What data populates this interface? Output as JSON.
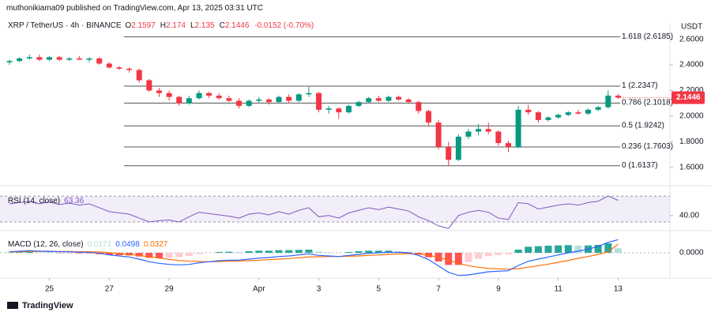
{
  "chart_data": {
    "type": "candlestick",
    "header": "muthonikiama09 published on TradingView.com, Apr 13, 2025 03:31 UTC",
    "title": "XRP / TetherUS · 4h · BINANCE",
    "ohlc": [
      {
        "label": "O",
        "value": 2.1597
      },
      {
        "label": "H",
        "value": 2.174
      },
      {
        "label": "L",
        "value": 2.135
      },
      {
        "label": "C",
        "value": 2.1446
      }
    ],
    "change": "-0.0152 (-0.70%)",
    "currency": "USDT",
    "brand": "TradingView",
    "up_color": "#089981",
    "down_color": "#f23645",
    "open": [
      2.42,
      2.43,
      2.45,
      2.46,
      2.44,
      2.46,
      2.44,
      2.45,
      2.44,
      2.45,
      2.41,
      2.38,
      2.37,
      2.36,
      2.28,
      2.2,
      2.18,
      2.15,
      2.1,
      2.14,
      2.18,
      2.16,
      2.14,
      2.12,
      2.08,
      2.12,
      2.13,
      2.11,
      2.15,
      2.12,
      2.17,
      2.18,
      2.05,
      2.06,
      2.03,
      2.08,
      2.11,
      2.14,
      2.12,
      2.15,
      2.13,
      2.11,
      2.04,
      1.95,
      1.76,
      1.66,
      1.84,
      1.88,
      1.9,
      1.88,
      1.79,
      1.76,
      2.05,
      2.03,
      1.97,
      1.99,
      2.01,
      2.03,
      2.02,
      2.05,
      2.07,
      2.1597
    ],
    "high": [
      2.44,
      2.46,
      2.48,
      2.48,
      2.47,
      2.47,
      2.46,
      2.47,
      2.46,
      2.46,
      2.42,
      2.39,
      2.38,
      2.37,
      2.29,
      2.22,
      2.2,
      2.16,
      2.16,
      2.2,
      2.19,
      2.18,
      2.16,
      2.14,
      2.13,
      2.15,
      2.14,
      2.16,
      2.17,
      2.18,
      2.23,
      2.19,
      2.08,
      2.07,
      2.09,
      2.12,
      2.15,
      2.16,
      2.16,
      2.16,
      2.14,
      2.12,
      2.05,
      1.97,
      1.8,
      1.86,
      1.9,
      1.94,
      1.95,
      1.89,
      1.81,
      2.08,
      2.09,
      2.04,
      2.0,
      2.02,
      2.04,
      2.05,
      2.06,
      2.08,
      2.2,
      2.174
    ],
    "low": [
      2.4,
      2.42,
      2.44,
      2.43,
      2.43,
      2.43,
      2.43,
      2.44,
      2.42,
      2.4,
      2.37,
      2.36,
      2.34,
      2.26,
      2.19,
      2.15,
      2.12,
      2.08,
      2.09,
      2.13,
      2.14,
      2.13,
      2.11,
      2.06,
      2.07,
      2.1,
      2.09,
      2.1,
      2.1,
      2.11,
      2.15,
      2.03,
      2.02,
      1.98,
      2.02,
      2.07,
      2.1,
      2.11,
      2.11,
      2.12,
      2.1,
      2.02,
      1.92,
      1.74,
      1.61,
      1.65,
      1.82,
      1.85,
      1.86,
      1.77,
      1.72,
      1.75,
      2.01,
      1.95,
      1.96,
      1.98,
      2.0,
      2.01,
      2.01,
      2.04,
      2.06,
      2.135
    ],
    "close": [
      2.43,
      2.45,
      2.46,
      2.44,
      2.46,
      2.44,
      2.45,
      2.44,
      2.45,
      2.41,
      2.38,
      2.37,
      2.36,
      2.28,
      2.2,
      2.18,
      2.15,
      2.1,
      2.14,
      2.18,
      2.16,
      2.14,
      2.12,
      2.08,
      2.12,
      2.13,
      2.11,
      2.15,
      2.12,
      2.17,
      2.18,
      2.05,
      2.06,
      2.03,
      2.08,
      2.11,
      2.14,
      2.12,
      2.15,
      2.13,
      2.11,
      2.04,
      1.95,
      1.76,
      1.66,
      1.84,
      1.88,
      1.9,
      1.88,
      1.79,
      1.76,
      2.05,
      2.03,
      1.97,
      1.99,
      2.01,
      2.03,
      2.02,
      2.05,
      2.07,
      2.16,
      2.1446
    ],
    "last": 2.1446,
    "ylim": [
      1.52,
      2.69
    ],
    "yticks": [
      {
        "value": 1.6,
        "label": "1.6000"
      },
      {
        "value": 1.8,
        "label": "1.8000"
      },
      {
        "value": 2.0,
        "label": "2.0000"
      },
      {
        "value": 2.2,
        "label": "2.2000"
      },
      {
        "value": 2.4,
        "label": "2.4000"
      },
      {
        "value": 2.6,
        "label": "2.6000"
      }
    ],
    "fib_levels": [
      {
        "value": 2.6185,
        "label": "1.618 (2.6185)"
      },
      {
        "value": 2.2347,
        "label": "1 (2.2347)"
      },
      {
        "value": 2.1018,
        "label": "0.786 (2.1018)"
      },
      {
        "value": 1.9242,
        "label": "0.5 (1.9242)"
      },
      {
        "value": 1.7603,
        "label": "0.236 (1.7603)"
      },
      {
        "value": 1.6137,
        "label": "0 (1.6137)"
      }
    ],
    "xticks": [
      {
        "value": 4,
        "label": "25"
      },
      {
        "value": 10,
        "label": "27"
      },
      {
        "value": 16,
        "label": "29"
      },
      {
        "value": 25,
        "label": "Apr"
      },
      {
        "value": 31,
        "label": "3"
      },
      {
        "value": 37,
        "label": "5"
      },
      {
        "value": 43,
        "label": "7"
      },
      {
        "value": 49,
        "label": "9"
      },
      {
        "value": 55,
        "label": "11"
      },
      {
        "value": 61,
        "label": "13"
      }
    ],
    "rsi": {
      "label": "RSI (14, close)",
      "current": 63.36,
      "color": "#7e57c2",
      "bands": [
        70,
        30
      ],
      "ylim": [
        19,
        80
      ],
      "yticks": [
        {
          "value": 40,
          "label": "40.00"
        }
      ],
      "values": [
        58,
        60,
        62,
        58,
        61,
        57,
        59,
        56,
        58,
        52,
        46,
        44,
        42,
        36,
        30,
        32,
        33,
        30,
        38,
        45,
        43,
        41,
        39,
        36,
        42,
        44,
        41,
        46,
        42,
        48,
        52,
        38,
        40,
        36,
        44,
        48,
        52,
        49,
        53,
        50,
        47,
        38,
        32,
        24,
        20,
        40,
        45,
        48,
        45,
        36,
        34,
        60,
        58,
        50,
        53,
        56,
        58,
        56,
        60,
        62,
        70,
        63.36
      ]
    },
    "macd": {
      "label": "MACD (12, 26, close)",
      "ylim": [
        -0.09,
        0.06
      ],
      "yticks": [
        {
          "value": 0,
          "label": "0.0000"
        }
      ],
      "readout": [
        {
          "name": "histogram",
          "value": 0.0171,
          "color": "#b2dfdb"
        },
        {
          "name": "macd",
          "value": 0.0498,
          "color": "#2962ff"
        },
        {
          "name": "signal",
          "value": 0.0327,
          "color": "#ff6d00"
        }
      ],
      "histogram": [
        0.001,
        0.002,
        0.003,
        0.001,
        0.001,
        -0.001,
        -0.001,
        -0.002,
        -0.002,
        -0.005,
        -0.008,
        -0.009,
        -0.01,
        -0.014,
        -0.019,
        -0.02,
        -0.019,
        -0.017,
        -0.012,
        -0.005,
        0.0,
        0.003,
        0.004,
        0.003,
        0.006,
        0.008,
        0.008,
        0.01,
        0.01,
        0.011,
        0.012,
        0.005,
        0.002,
        0.0,
        0.003,
        0.006,
        0.008,
        0.008,
        0.008,
        0.006,
        0.003,
        -0.005,
        -0.017,
        -0.033,
        -0.046,
        -0.046,
        -0.035,
        -0.023,
        -0.013,
        -0.009,
        -0.006,
        0.012,
        0.023,
        0.025,
        0.027,
        0.028,
        0.029,
        0.027,
        0.028,
        0.03,
        0.036,
        0.0171
      ],
      "macd": [
        0.004,
        0.006,
        0.008,
        0.006,
        0.006,
        0.004,
        0.004,
        0.002,
        0.002,
        -0.002,
        -0.008,
        -0.012,
        -0.016,
        -0.024,
        -0.034,
        -0.04,
        -0.044,
        -0.046,
        -0.044,
        -0.038,
        -0.034,
        -0.03,
        -0.028,
        -0.028,
        -0.024,
        -0.02,
        -0.018,
        -0.014,
        -0.012,
        -0.008,
        -0.004,
        -0.01,
        -0.012,
        -0.014,
        -0.01,
        -0.006,
        -0.002,
        0.0,
        0.002,
        0.002,
        0.0,
        -0.01,
        -0.026,
        -0.05,
        -0.074,
        -0.086,
        -0.084,
        -0.078,
        -0.072,
        -0.07,
        -0.068,
        -0.048,
        -0.032,
        -0.024,
        -0.016,
        -0.008,
        0.0,
        0.006,
        0.014,
        0.024,
        0.04,
        0.0498
      ],
      "signal": [
        0.003,
        0.004,
        0.005,
        0.005,
        0.005,
        0.005,
        0.005,
        0.004,
        0.004,
        0.003,
        0.0,
        -0.003,
        -0.006,
        -0.01,
        -0.015,
        -0.02,
        -0.025,
        -0.029,
        -0.032,
        -0.033,
        -0.034,
        -0.033,
        -0.032,
        -0.031,
        -0.03,
        -0.028,
        -0.026,
        -0.024,
        -0.022,
        -0.019,
        -0.016,
        -0.015,
        -0.014,
        -0.014,
        -0.013,
        -0.012,
        -0.01,
        -0.008,
        -0.006,
        -0.004,
        -0.003,
        -0.005,
        -0.009,
        -0.017,
        -0.028,
        -0.04,
        -0.049,
        -0.055,
        -0.059,
        -0.061,
        -0.062,
        -0.06,
        -0.055,
        -0.049,
        -0.043,
        -0.036,
        -0.029,
        -0.021,
        -0.014,
        -0.006,
        0.004,
        0.0327
      ],
      "colors": {
        "macd": "#2962ff",
        "signal": "#ff6d00",
        "up_grow": "#26a69a",
        "up_fall": "#b2dfdb",
        "down_grow": "#ff5252",
        "down_fall": "#ffcdd2"
      }
    }
  }
}
